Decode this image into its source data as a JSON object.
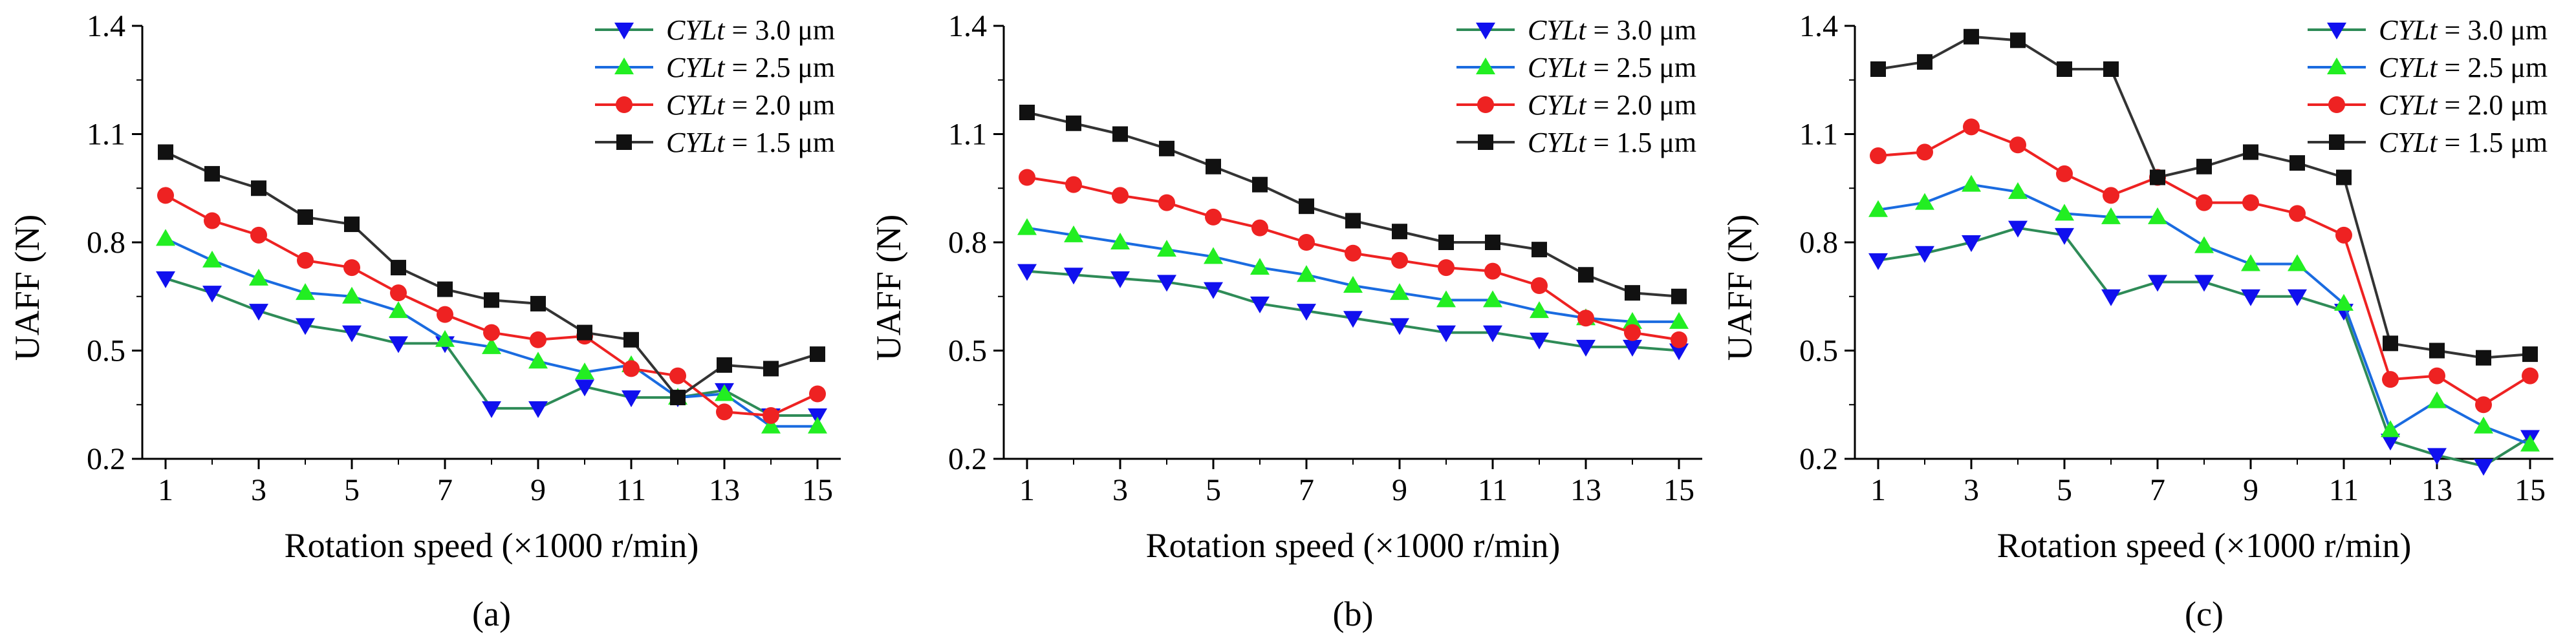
{
  "colors": {
    "s30": "#2e8b57",
    "s30_marker": "#1010ee",
    "s25": "#1a6be0",
    "s25_marker": "#22ee22",
    "s20": "#ee2222",
    "s20_marker": "#ee2222",
    "s15": "#333333",
    "s15_marker": "#111111"
  },
  "chart_data": [
    {
      "type": "line",
      "panel_label": "(a)",
      "xlabel": "Rotation speed (×1000 r/min)",
      "ylabel": "UAFF (N)",
      "x": [
        1,
        2,
        3,
        4,
        5,
        6,
        7,
        8,
        9,
        10,
        11,
        12,
        13,
        14,
        15
      ],
      "xticks": [
        "1",
        "3",
        "5",
        "7",
        "9",
        "11",
        "13",
        "15"
      ],
      "yticks": [
        "0.2",
        "0.5",
        "0.8",
        "1.1",
        "1.4"
      ],
      "ylim": [
        0.2,
        1.4
      ],
      "xlim": [
        0.5,
        15.5
      ],
      "legend_position": "top-right",
      "series": [
        {
          "name": "CYLt = 3.0 μm",
          "prefix": "CYLt",
          "suffix": " = 3.0 μm",
          "marker": "triangle-down",
          "values": [
            0.7,
            0.66,
            0.61,
            0.57,
            0.55,
            0.52,
            0.52,
            0.34,
            0.34,
            0.4,
            0.37,
            0.37,
            0.39,
            0.32,
            0.32
          ]
        },
        {
          "name": "CYLt = 2.5 μm",
          "prefix": "CYLt",
          "suffix": " = 2.5 μm",
          "marker": "triangle-up",
          "values": [
            0.81,
            0.75,
            0.7,
            0.66,
            0.65,
            0.61,
            0.53,
            0.51,
            0.47,
            0.44,
            0.46,
            0.37,
            0.38,
            0.29,
            0.29
          ]
        },
        {
          "name": "CYLt = 2.0 μm",
          "prefix": "CYLt",
          "suffix": " = 2.0 μm",
          "marker": "circle",
          "values": [
            0.93,
            0.86,
            0.82,
            0.75,
            0.73,
            0.66,
            0.6,
            0.55,
            0.53,
            0.54,
            0.45,
            0.43,
            0.33,
            0.32,
            0.38
          ]
        },
        {
          "name": "CYLt = 1.5 μm",
          "prefix": "CYLt",
          "suffix": " = 1.5 μm",
          "marker": "square",
          "values": [
            1.05,
            0.99,
            0.95,
            0.87,
            0.85,
            0.73,
            0.67,
            0.64,
            0.63,
            0.55,
            0.53,
            0.37,
            0.46,
            0.45,
            0.49
          ]
        }
      ]
    },
    {
      "type": "line",
      "panel_label": "(b)",
      "xlabel": "Rotation speed (×1000 r/min)",
      "ylabel": "UAFF (N)",
      "x": [
        1,
        2,
        3,
        4,
        5,
        6,
        7,
        8,
        9,
        10,
        11,
        12,
        13,
        14,
        15
      ],
      "xticks": [
        "1",
        "3",
        "5",
        "7",
        "9",
        "11",
        "13",
        "15"
      ],
      "yticks": [
        "0.2",
        "0.5",
        "0.8",
        "1.1",
        "1.4"
      ],
      "ylim": [
        0.2,
        1.4
      ],
      "xlim": [
        0.5,
        15.5
      ],
      "legend_position": "top-right",
      "series": [
        {
          "name": "CYLt = 3.0 μm",
          "prefix": "CYLt",
          "suffix": " = 3.0 μm",
          "marker": "triangle-down",
          "values": [
            0.72,
            0.71,
            0.7,
            0.69,
            0.67,
            0.63,
            0.61,
            0.59,
            0.57,
            0.55,
            0.55,
            0.53,
            0.51,
            0.51,
            0.5
          ]
        },
        {
          "name": "CYLt = 2.5 μm",
          "prefix": "CYLt",
          "suffix": " = 2.5 μm",
          "marker": "triangle-up",
          "values": [
            0.84,
            0.82,
            0.8,
            0.78,
            0.76,
            0.73,
            0.71,
            0.68,
            0.66,
            0.64,
            0.64,
            0.61,
            0.59,
            0.58,
            0.58
          ]
        },
        {
          "name": "CYLt = 2.0 μm",
          "prefix": "CYLt",
          "suffix": " = 2.0 μm",
          "marker": "circle",
          "values": [
            0.98,
            0.96,
            0.93,
            0.91,
            0.87,
            0.84,
            0.8,
            0.77,
            0.75,
            0.73,
            0.72,
            0.68,
            0.59,
            0.55,
            0.53
          ]
        },
        {
          "name": "CYLt = 1.5 μm",
          "prefix": "CYLt",
          "suffix": " = 1.5 μm",
          "marker": "square",
          "values": [
            1.16,
            1.13,
            1.1,
            1.06,
            1.01,
            0.96,
            0.9,
            0.86,
            0.83,
            0.8,
            0.8,
            0.78,
            0.71,
            0.66,
            0.65
          ]
        }
      ]
    },
    {
      "type": "line",
      "panel_label": "(c)",
      "xlabel": "Rotation speed (×1000 r/min)",
      "ylabel": "UAFF (N)",
      "x": [
        1,
        2,
        3,
        4,
        5,
        6,
        7,
        8,
        9,
        10,
        11,
        12,
        13,
        14,
        15
      ],
      "xticks": [
        "1",
        "3",
        "5",
        "7",
        "9",
        "11",
        "13",
        "15"
      ],
      "yticks": [
        "0.2",
        "0.5",
        "0.8",
        "1.1",
        "1.4"
      ],
      "ylim": [
        0.2,
        1.4
      ],
      "xlim": [
        0.5,
        15.5
      ],
      "legend_position": "top-right",
      "series": [
        {
          "name": "CYLt = 3.0 μm",
          "prefix": "CYLt",
          "suffix": " = 3.0 μm",
          "marker": "triangle-down",
          "values": [
            0.75,
            0.77,
            0.8,
            0.84,
            0.82,
            0.65,
            0.69,
            0.69,
            0.65,
            0.65,
            0.61,
            0.25,
            0.21,
            0.18,
            0.26
          ]
        },
        {
          "name": "CYLt = 2.5 μm",
          "prefix": "CYLt",
          "suffix": " = 2.5 μm",
          "marker": "triangle-up",
          "values": [
            0.89,
            0.91,
            0.96,
            0.94,
            0.88,
            0.87,
            0.87,
            0.79,
            0.74,
            0.74,
            0.63,
            0.28,
            0.36,
            0.29,
            0.24
          ]
        },
        {
          "name": "CYLt = 2.0 μm",
          "prefix": "CYLt",
          "suffix": " = 2.0 μm",
          "marker": "circle",
          "values": [
            1.04,
            1.05,
            1.12,
            1.07,
            0.99,
            0.93,
            0.98,
            0.91,
            0.91,
            0.88,
            0.82,
            0.42,
            0.43,
            0.35,
            0.43
          ]
        },
        {
          "name": "CYLt = 1.5 μm",
          "prefix": "CYLt",
          "suffix": " = 1.5 μm",
          "marker": "square",
          "values": [
            1.28,
            1.3,
            1.37,
            1.36,
            1.28,
            1.28,
            0.98,
            1.01,
            1.05,
            1.02,
            0.98,
            0.52,
            0.5,
            0.48,
            0.49
          ]
        }
      ]
    }
  ]
}
